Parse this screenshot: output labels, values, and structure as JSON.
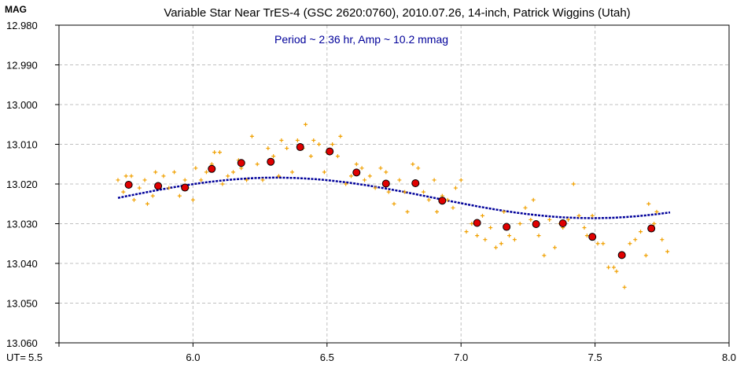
{
  "chart_data": {
    "type": "scatter",
    "title": "Variable Star Near TrES-4 (GSC 2620:0760), 2010.07.26, 14-inch, Patrick Wiggins (Utah)",
    "ylabel": "MAG",
    "xlabel_prefix": "UT=",
    "annotation": "Period ~ 2.36 hr, Amp ~ 10.2 mmag",
    "xlim": [
      5.5,
      8.0
    ],
    "ylim": [
      12.98,
      13.06
    ],
    "y_inverted": false,
    "grid": true,
    "x_ticks": [
      5.5,
      6.0,
      6.5,
      7.0,
      7.5,
      8.0
    ],
    "x_tick_labels": [
      "5.5",
      "6.0",
      "6.5",
      "7.0",
      "7.5",
      "8.0"
    ],
    "y_ticks": [
      12.98,
      12.99,
      13.0,
      13.01,
      13.02,
      13.03,
      13.04,
      13.05,
      13.06
    ],
    "y_tick_labels": [
      "12.980",
      "12.990",
      "13.000",
      "13.010",
      "13.020",
      "13.030",
      "13.040",
      "13.050",
      "13.060"
    ],
    "colors": {
      "raw": "#f0a000",
      "binned_fill": "#e00000",
      "binned_edge": "#000000",
      "fit": "#00009a",
      "grid": "#c0c0c0",
      "annotation": "#00009a"
    },
    "series": [
      {
        "kind": "raw",
        "points": [
          [
            5.72,
            13.019
          ],
          [
            5.74,
            13.022
          ],
          [
            5.75,
            13.018
          ],
          [
            5.77,
            13.018
          ],
          [
            5.78,
            13.024
          ],
          [
            5.8,
            13.021
          ],
          [
            5.82,
            13.019
          ],
          [
            5.83,
            13.025
          ],
          [
            5.85,
            13.023
          ],
          [
            5.86,
            13.017
          ],
          [
            5.87,
            13.02
          ],
          [
            5.89,
            13.018
          ],
          [
            5.91,
            13.021
          ],
          [
            5.93,
            13.017
          ],
          [
            5.95,
            13.023
          ],
          [
            5.97,
            13.019
          ],
          [
            5.98,
            13.021
          ],
          [
            6.0,
            13.024
          ],
          [
            6.01,
            13.016
          ],
          [
            6.03,
            13.019
          ],
          [
            6.05,
            13.017
          ],
          [
            6.07,
            13.015
          ],
          [
            6.08,
            13.012
          ],
          [
            6.1,
            13.012
          ],
          [
            6.11,
            13.02
          ],
          [
            6.13,
            13.018
          ],
          [
            6.15,
            13.017
          ],
          [
            6.17,
            13.014
          ],
          [
            6.18,
            13.016
          ],
          [
            6.2,
            13.019
          ],
          [
            6.22,
            13.008
          ],
          [
            6.24,
            13.015
          ],
          [
            6.26,
            13.019
          ],
          [
            6.28,
            13.011
          ],
          [
            6.3,
            13.013
          ],
          [
            6.32,
            13.018
          ],
          [
            6.33,
            13.009
          ],
          [
            6.35,
            13.011
          ],
          [
            6.37,
            13.017
          ],
          [
            6.39,
            13.009
          ],
          [
            6.41,
            13.011
          ],
          [
            6.42,
            13.005
          ],
          [
            6.44,
            13.013
          ],
          [
            6.45,
            13.009
          ],
          [
            6.47,
            13.01
          ],
          [
            6.49,
            13.017
          ],
          [
            6.5,
            13.012
          ],
          [
            6.52,
            13.01
          ],
          [
            6.54,
            13.013
          ],
          [
            6.55,
            13.008
          ],
          [
            6.57,
            13.02
          ],
          [
            6.59,
            13.018
          ],
          [
            6.61,
            13.015
          ],
          [
            6.63,
            13.016
          ],
          [
            6.64,
            13.019
          ],
          [
            6.66,
            13.018
          ],
          [
            6.68,
            13.021
          ],
          [
            6.7,
            13.016
          ],
          [
            6.72,
            13.017
          ],
          [
            6.73,
            13.022
          ],
          [
            6.75,
            13.025
          ],
          [
            6.77,
            13.019
          ],
          [
            6.79,
            13.022
          ],
          [
            6.8,
            13.027
          ],
          [
            6.82,
            13.015
          ],
          [
            6.84,
            13.016
          ],
          [
            6.86,
            13.022
          ],
          [
            6.88,
            13.024
          ],
          [
            6.9,
            13.019
          ],
          [
            6.91,
            13.027
          ],
          [
            6.93,
            13.023
          ],
          [
            6.95,
            13.024
          ],
          [
            6.97,
            13.026
          ],
          [
            6.98,
            13.021
          ],
          [
            7.0,
            13.019
          ],
          [
            7.02,
            13.032
          ],
          [
            7.04,
            13.03
          ],
          [
            7.06,
            13.033
          ],
          [
            7.08,
            13.028
          ],
          [
            7.09,
            13.034
          ],
          [
            7.11,
            13.031
          ],
          [
            7.13,
            13.036
          ],
          [
            7.15,
            13.035
          ],
          [
            7.16,
            13.027
          ],
          [
            7.18,
            13.033
          ],
          [
            7.2,
            13.034
          ],
          [
            7.22,
            13.03
          ],
          [
            7.24,
            13.026
          ],
          [
            7.26,
            13.029
          ],
          [
            7.27,
            13.024
          ],
          [
            7.29,
            13.033
          ],
          [
            7.31,
            13.038
          ],
          [
            7.33,
            13.029
          ],
          [
            7.35,
            13.036
          ],
          [
            7.37,
            13.03
          ],
          [
            7.38,
            13.031
          ],
          [
            7.4,
            13.029
          ],
          [
            7.42,
            13.02
          ],
          [
            7.44,
            13.028
          ],
          [
            7.46,
            13.031
          ],
          [
            7.47,
            13.033
          ],
          [
            7.49,
            13.028
          ],
          [
            7.51,
            13.035
          ],
          [
            7.53,
            13.035
          ],
          [
            7.55,
            13.041
          ],
          [
            7.57,
            13.041
          ],
          [
            7.58,
            13.042
          ],
          [
            7.6,
            13.038
          ],
          [
            7.61,
            13.046
          ],
          [
            7.63,
            13.035
          ],
          [
            7.65,
            13.034
          ],
          [
            7.67,
            13.032
          ],
          [
            7.69,
            13.038
          ],
          [
            7.7,
            13.025
          ],
          [
            7.72,
            13.03
          ],
          [
            7.73,
            13.027
          ],
          [
            7.75,
            13.034
          ],
          [
            7.77,
            13.037
          ]
        ]
      },
      {
        "kind": "binned",
        "points": [
          [
            5.76,
            13.0202
          ],
          [
            5.87,
            13.0205
          ],
          [
            5.97,
            13.0209
          ],
          [
            6.07,
            13.0162
          ],
          [
            6.18,
            13.0147
          ],
          [
            6.29,
            13.0144
          ],
          [
            6.4,
            13.0107
          ],
          [
            6.51,
            13.0118
          ],
          [
            6.61,
            13.0171
          ],
          [
            6.72,
            13.0199
          ],
          [
            6.83,
            13.0198
          ],
          [
            6.93,
            13.0242
          ],
          [
            7.06,
            13.0298
          ],
          [
            7.17,
            13.0308
          ],
          [
            7.28,
            13.0301
          ],
          [
            7.38,
            13.0299
          ],
          [
            7.49,
            13.0333
          ],
          [
            7.6,
            13.0379
          ],
          [
            7.71,
            13.0312
          ]
        ]
      },
      {
        "kind": "fit",
        "x_start": 5.72,
        "x_end": 7.78,
        "mean": 13.0235,
        "amplitude": 0.0102,
        "period_hr": 2.36,
        "peak_x": 6.31
      }
    ]
  }
}
